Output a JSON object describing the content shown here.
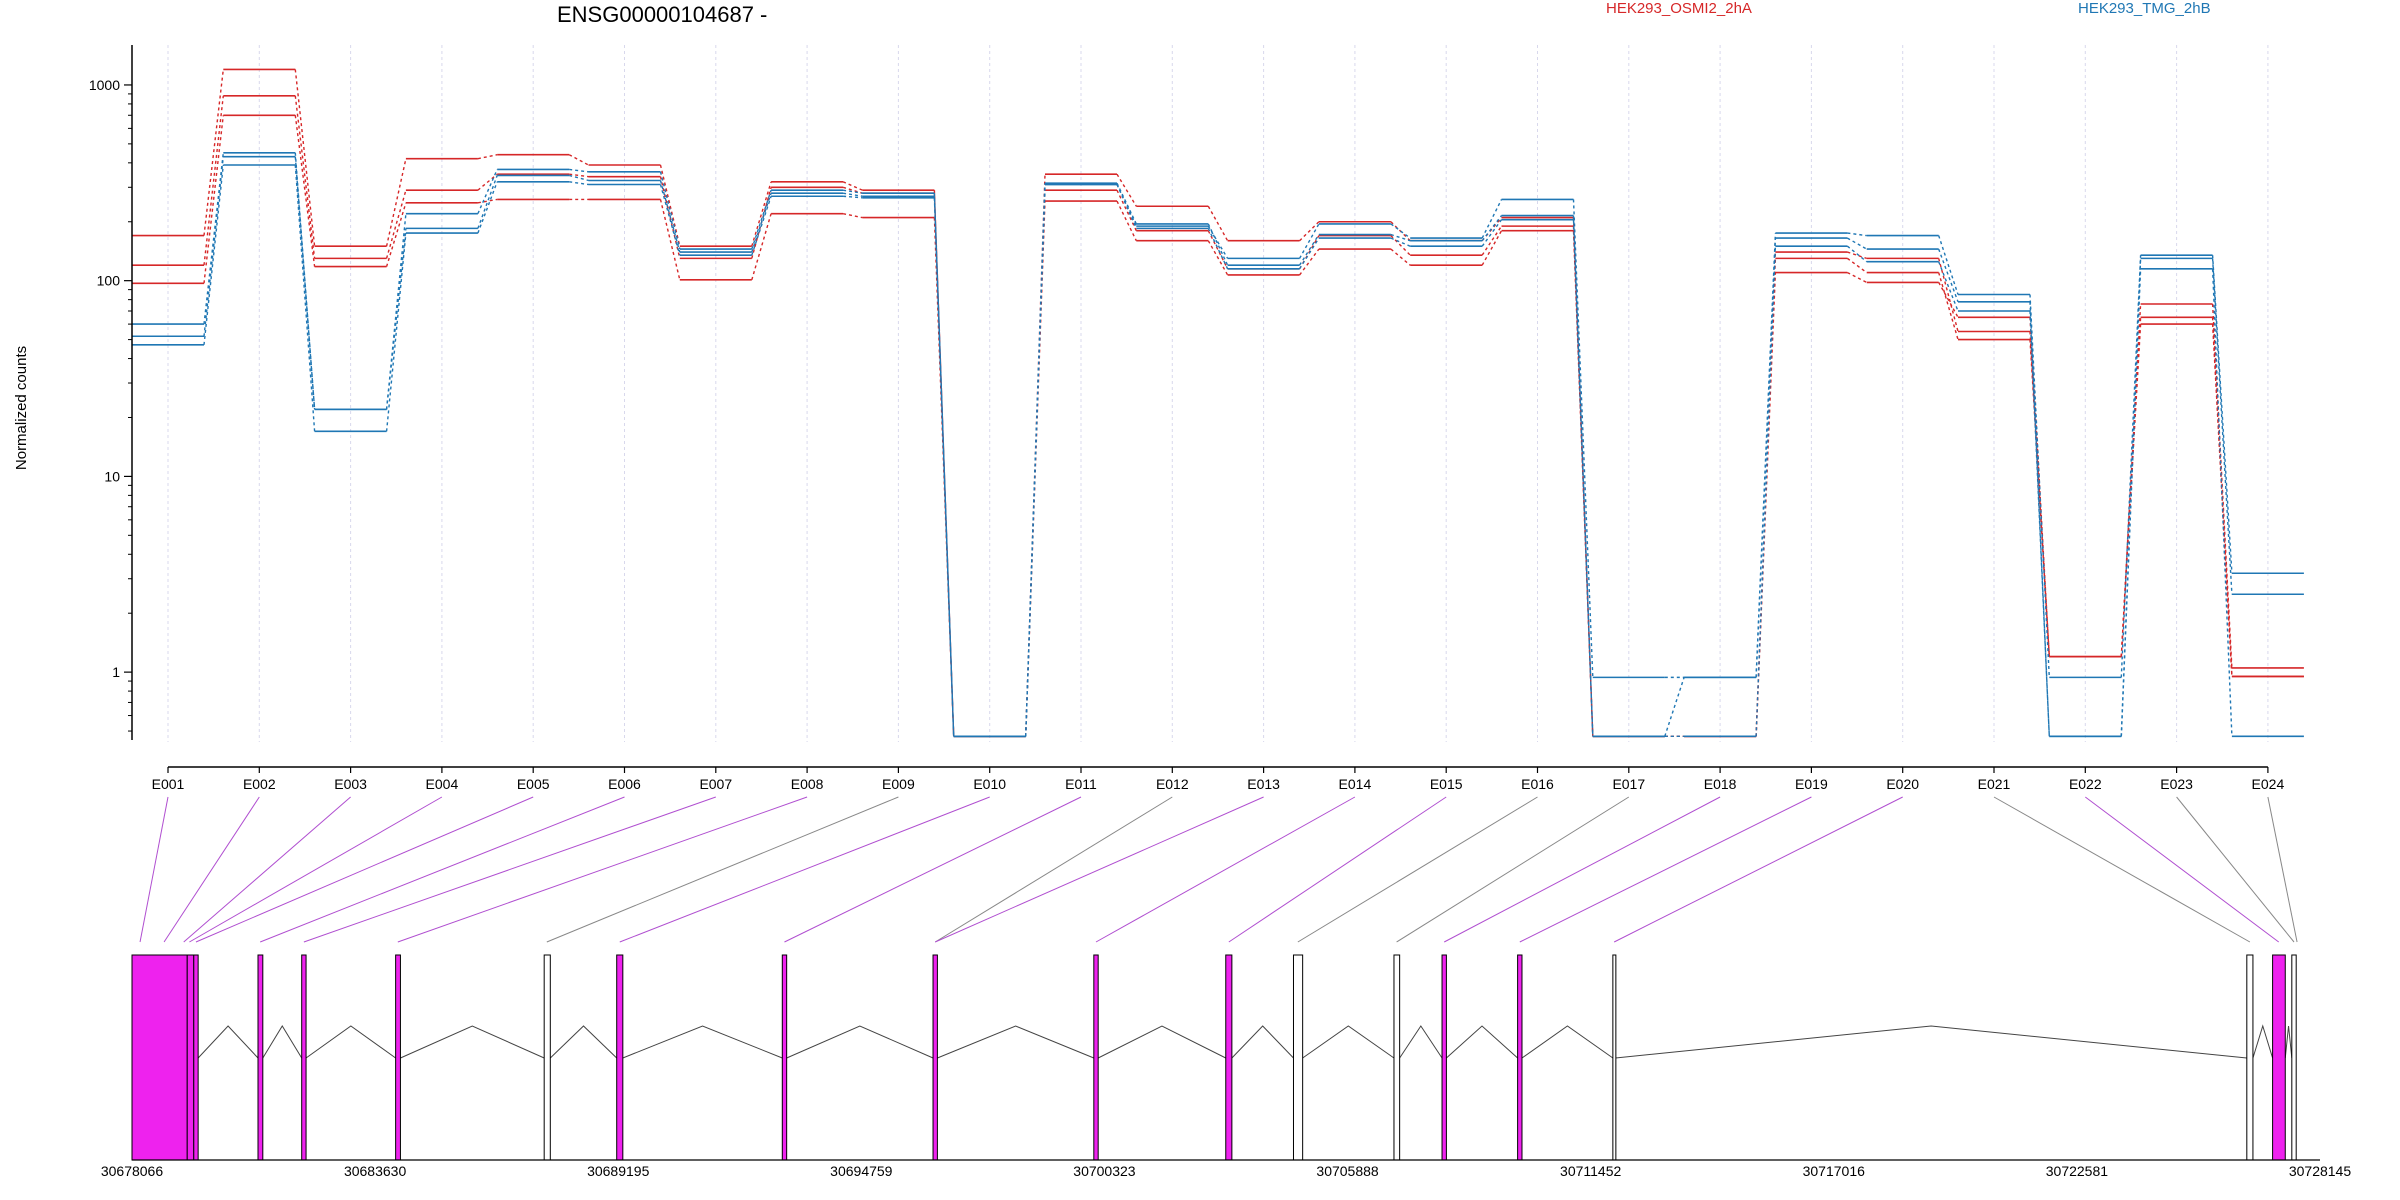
{
  "chart_data": {
    "type": "line",
    "title": "ENSG00000104687 -",
    "ylabel": "Normalized counts",
    "yscale": "log",
    "ylim": [
      0.45,
      1600
    ],
    "yticks": [
      {
        "value": 1,
        "label": "1"
      },
      {
        "value": 10,
        "label": "10"
      },
      {
        "value": 100,
        "label": "100"
      },
      {
        "value": 1000,
        "label": "1000"
      }
    ],
    "categories": [
      "E001",
      "E002",
      "E003",
      "E004",
      "E005",
      "E006",
      "E007",
      "E008",
      "E009",
      "E010",
      "E011",
      "E012",
      "E013",
      "E014",
      "E015",
      "E016",
      "E017",
      "E018",
      "E019",
      "E020",
      "E021",
      "E022",
      "E023",
      "E024"
    ],
    "legend": [
      {
        "name": "HEK293_OSMI2_2hA",
        "color": "#d62728"
      },
      {
        "name": "HEK293_TMG_2hB",
        "color": "#1f77b4"
      }
    ],
    "series": [
      {
        "group": 0,
        "color": "#d62728",
        "values": [
          170,
          1200,
          150,
          420,
          440,
          390,
          150,
          320,
          290,
          0.47,
          350,
          240,
          160,
          200,
          160,
          210,
          0.47,
          0.47,
          140,
          130,
          55,
          1.2,
          76,
          1.05
        ]
      },
      {
        "group": 0,
        "color": "#d62728",
        "values": [
          120,
          880,
          130,
          290,
          350,
          340,
          130,
          300,
          280,
          0.47,
          290,
          180,
          115,
          170,
          135,
          190,
          0.47,
          0.47,
          130,
          110,
          50,
          1.2,
          65,
          0.95
        ]
      },
      {
        "group": 0,
        "color": "#d62728",
        "values": [
          97,
          700,
          118,
          250,
          260,
          260,
          101,
          220,
          210,
          0.47,
          255,
          160,
          107,
          145,
          120,
          180,
          0.47,
          0.47,
          110,
          98,
          65,
          1.2,
          60,
          0.95
        ]
      },
      {
        "group": 1,
        "color": "#1f77b4",
        "values": [
          60,
          450,
          22,
          220,
          370,
          360,
          145,
          290,
          280,
          0.47,
          310,
          190,
          130,
          195,
          165,
          260,
          0.94,
          0.94,
          175,
          170,
          85,
          0.94,
          135,
          3.2
        ]
      },
      {
        "group": 1,
        "color": "#1f77b4",
        "values": [
          52,
          430,
          22,
          185,
          345,
          325,
          140,
          280,
          270,
          0.47,
          315,
          195,
          120,
          172,
          160,
          215,
          0.47,
          0.94,
          165,
          145,
          78,
          0.47,
          130,
          2.5
        ]
      },
      {
        "group": 1,
        "color": "#1f77b4",
        "values": [
          47,
          390,
          17,
          175,
          320,
          310,
          135,
          270,
          265,
          0.47,
          310,
          185,
          115,
          165,
          150,
          205,
          0.47,
          0.47,
          150,
          125,
          70,
          0.47,
          115,
          0.47
        ]
      }
    ],
    "gene_model": {
      "genomic_ticks": [
        "30678066",
        "30683630",
        "30689195",
        "30694759",
        "30700323",
        "30705888",
        "30711452",
        "30717016",
        "30722581",
        "30728145"
      ],
      "range": [
        30678066,
        30728145
      ],
      "exons": [
        {
          "start": 30678066,
          "end": 30679330,
          "type": "tested"
        },
        {
          "start": 30679330,
          "end": 30679480,
          "type": "tested"
        },
        {
          "start": 30679480,
          "end": 30679580,
          "type": "tested"
        },
        {
          "start": 30680950,
          "end": 30681060,
          "type": "tested"
        },
        {
          "start": 30681950,
          "end": 30682050,
          "type": "tested"
        },
        {
          "start": 30684100,
          "end": 30684210,
          "type": "tested"
        },
        {
          "start": 30687500,
          "end": 30687640,
          "type": "untested"
        },
        {
          "start": 30689160,
          "end": 30689300,
          "type": "tested"
        },
        {
          "start": 30692950,
          "end": 30693050,
          "type": "tested"
        },
        {
          "start": 30696400,
          "end": 30696500,
          "type": "tested"
        },
        {
          "start": 30700080,
          "end": 30700180,
          "type": "tested"
        },
        {
          "start": 30703100,
          "end": 30703240,
          "type": "tested"
        },
        {
          "start": 30704650,
          "end": 30704860,
          "type": "untested"
        },
        {
          "start": 30706950,
          "end": 30707080,
          "type": "untested"
        },
        {
          "start": 30708050,
          "end": 30708150,
          "type": "tested"
        },
        {
          "start": 30709780,
          "end": 30709880,
          "type": "tested"
        },
        {
          "start": 30711960,
          "end": 30712020,
          "type": "untested"
        },
        {
          "start": 30726470,
          "end": 30726610,
          "type": "untested"
        },
        {
          "start": 30727060,
          "end": 30727350,
          "type": "tested"
        },
        {
          "start": 30727500,
          "end": 30727600,
          "type": "untested"
        }
      ],
      "exon_links": [
        {
          "bin": "E001",
          "pos": 30678250,
          "type": "tested"
        },
        {
          "bin": "E002",
          "pos": 30678800,
          "type": "tested"
        },
        {
          "bin": "E003",
          "pos": 30679250,
          "type": "tested"
        },
        {
          "bin": "E004",
          "pos": 30679380,
          "type": "tested"
        },
        {
          "bin": "E005",
          "pos": 30679530,
          "type": "tested"
        },
        {
          "bin": "E006",
          "pos": 30681000,
          "type": "tested"
        },
        {
          "bin": "E007",
          "pos": 30682000,
          "type": "tested"
        },
        {
          "bin": "E008",
          "pos": 30684150,
          "type": "tested"
        },
        {
          "bin": "E009",
          "pos": 30687560,
          "type": "untested"
        },
        {
          "bin": "E010",
          "pos": 30689230,
          "type": "tested"
        },
        {
          "bin": "E011",
          "pos": 30693000,
          "type": "tested"
        },
        {
          "bin": "E012",
          "pos": 30696450,
          "type": "untested"
        },
        {
          "bin": "E013",
          "pos": 30696450,
          "type": "tested"
        },
        {
          "bin": "E014",
          "pos": 30700130,
          "type": "tested"
        },
        {
          "bin": "E015",
          "pos": 30703170,
          "type": "tested"
        },
        {
          "bin": "E016",
          "pos": 30704750,
          "type": "untested"
        },
        {
          "bin": "E017",
          "pos": 30707010,
          "type": "untested"
        },
        {
          "bin": "E018",
          "pos": 30708100,
          "type": "tested"
        },
        {
          "bin": "E019",
          "pos": 30709830,
          "type": "tested"
        },
        {
          "bin": "E020",
          "pos": 30711990,
          "type": "tested"
        },
        {
          "bin": "E021",
          "pos": 30726540,
          "type": "untested"
        },
        {
          "bin": "E022",
          "pos": 30727200,
          "type": "tested"
        },
        {
          "bin": "E023",
          "pos": 30727550,
          "type": "untested"
        },
        {
          "bin": "E024",
          "pos": 30727620,
          "type": "untested"
        }
      ]
    }
  },
  "colors": {
    "group_a": "#d62728",
    "group_b": "#1f77b4",
    "exon_tested": "#ee22ee",
    "exon_untested": "#ffffff",
    "link_tested": "#b04fd0",
    "link_untested": "#888888",
    "grid": "#d8d8ec"
  }
}
